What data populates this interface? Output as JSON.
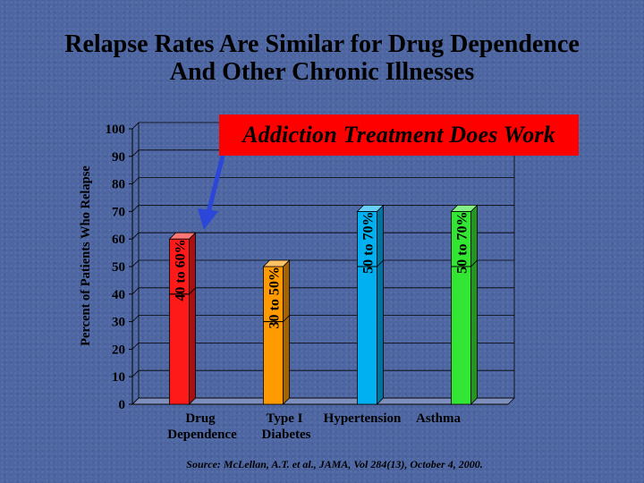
{
  "slide": {
    "title_line1": "Relapse Rates Are Similar for Drug Dependence",
    "title_line2": "And Other Chronic Illnesses",
    "callout": "Addiction Treatment Does Work",
    "source": "Source: McLellan, A.T. et al., JAMA, Vol 284(13), October 4, 2000."
  },
  "colors": {
    "background": "#4e67a3",
    "callout": "#ff0000",
    "arrow": "#2b46d8"
  },
  "chart_data": {
    "type": "bar",
    "title": "",
    "ylabel": "Percent of Patients Who Relapse",
    "xlabel": "",
    "ylim": [
      0,
      100
    ],
    "yticks": [
      0,
      10,
      20,
      30,
      40,
      50,
      60,
      70,
      80,
      90,
      100
    ],
    "grid": true,
    "categories": [
      {
        "line1": "Drug",
        "line2": "Dependence"
      },
      {
        "line1": "Type I",
        "line2": "Diabetes"
      },
      {
        "line1": "Hypertension",
        "line2": ""
      },
      {
        "line1": "Asthma",
        "line2": ""
      }
    ],
    "bars": [
      {
        "low": 40,
        "high": 60,
        "label": "40 to 60%",
        "color": "#ff1a1a"
      },
      {
        "low": 30,
        "high": 50,
        "label": "30 to 50%",
        "color": "#ff9a00"
      },
      {
        "low": 50,
        "high": 70,
        "label": "50 to 70%",
        "color": "#00b0f0"
      },
      {
        "low": 50,
        "high": 70,
        "label": "50 to 70%",
        "color": "#33e633"
      }
    ]
  }
}
